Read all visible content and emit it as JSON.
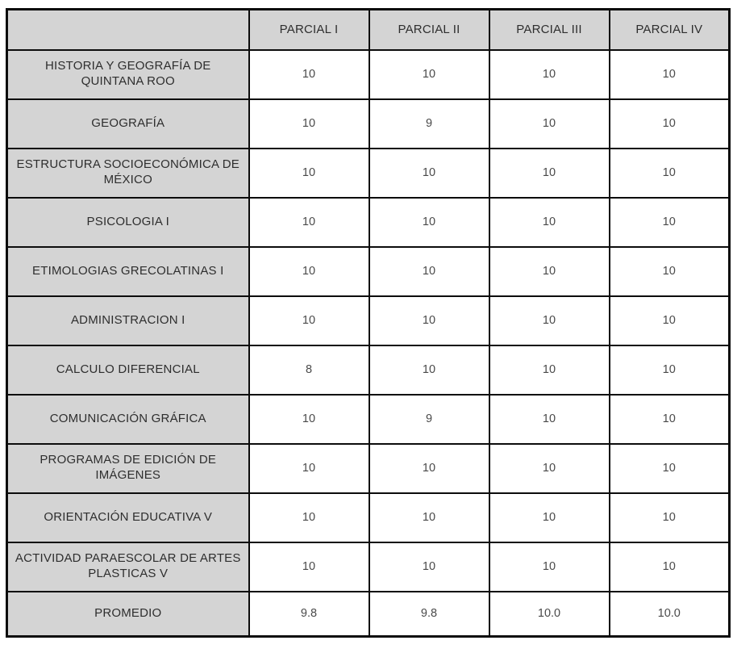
{
  "table": {
    "corner_label": "",
    "columns": [
      "PARCIAL I",
      "PARCIAL II",
      "PARCIAL III",
      "PARCIAL IV"
    ],
    "rows": [
      {
        "subject": "HISTORIA Y GEOGRAFÍA DE QUINTANA ROO",
        "values": [
          "10",
          "10",
          "10",
          "10"
        ]
      },
      {
        "subject": "GEOGRAFÍA",
        "values": [
          "10",
          "9",
          "10",
          "10"
        ]
      },
      {
        "subject": "ESTRUCTURA SOCIOECONÓMICA DE MÉXICO",
        "values": [
          "10",
          "10",
          "10",
          "10"
        ]
      },
      {
        "subject": "PSICOLOGIA I",
        "values": [
          "10",
          "10",
          "10",
          "10"
        ]
      },
      {
        "subject": "ETIMOLOGIAS GRECOLATINAS I",
        "values": [
          "10",
          "10",
          "10",
          "10"
        ]
      },
      {
        "subject": "ADMINISTRACION I",
        "values": [
          "10",
          "10",
          "10",
          "10"
        ]
      },
      {
        "subject": "CALCULO DIFERENCIAL",
        "values": [
          "8",
          "10",
          "10",
          "10"
        ]
      },
      {
        "subject": "COMUNICACIÓN GRÁFICA",
        "values": [
          "10",
          "9",
          "10",
          "10"
        ]
      },
      {
        "subject": "PROGRAMAS DE EDICIÓN DE IMÁGENES",
        "values": [
          "10",
          "10",
          "10",
          "10"
        ]
      },
      {
        "subject": "ORIENTACIÓN EDUCATIVA V",
        "values": [
          "10",
          "10",
          "10",
          "10"
        ]
      },
      {
        "subject": "ACTIVIDAD PARAESCOLAR DE ARTES PLASTICAS V",
        "values": [
          "10",
          "10",
          "10",
          "10"
        ]
      },
      {
        "subject": "PROMEDIO",
        "values": [
          "9.8",
          "9.8",
          "10.0",
          "10.0"
        ]
      }
    ],
    "promedio_row_subject": "PROMEDIO"
  },
  "colors": {
    "header_bg": "#d4d4d4",
    "cell_bg": "#ffffff",
    "border": "#0c0c0c",
    "label_text": "#2e2e2e",
    "value_text": "#4a4a4a"
  }
}
